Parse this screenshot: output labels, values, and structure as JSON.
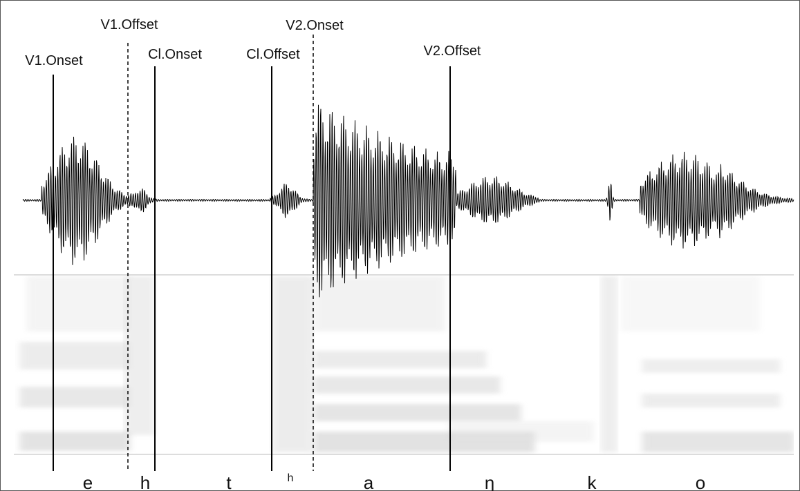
{
  "boundaries": [
    {
      "label": "V1.Onset"
    },
    {
      "label": "V1.Offset"
    },
    {
      "label": "Cl.Onset"
    },
    {
      "label": "Cl.Offset"
    },
    {
      "label": "V2.Onset"
    },
    {
      "label": "V2.Offset"
    }
  ],
  "segments": [
    "e",
    "h",
    "t",
    "h",
    "a",
    "ŋ",
    "k",
    "o"
  ]
}
